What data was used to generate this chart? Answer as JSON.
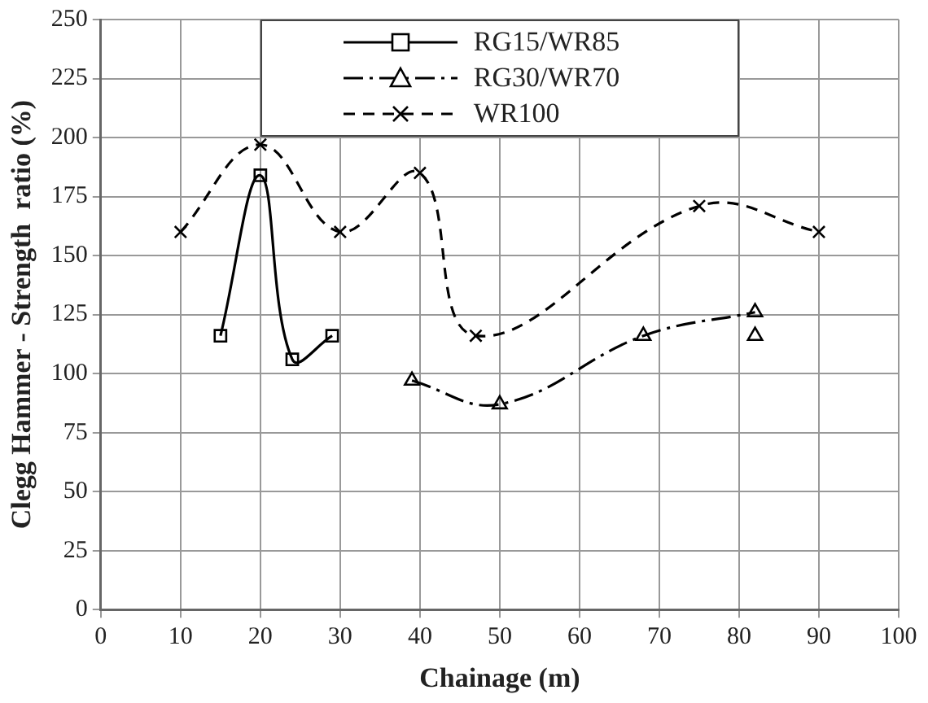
{
  "chart_data": {
    "type": "line",
    "xlabel": "Chainage (m)",
    "ylabel": "Clegg Hammer - Strength  ratio (%)",
    "xlim": [
      0,
      100
    ],
    "xticks": [
      0,
      10,
      20,
      30,
      40,
      50,
      60,
      70,
      80,
      90,
      100
    ],
    "ylim": [
      0,
      250
    ],
    "yticks": [
      0,
      25,
      50,
      75,
      100,
      125,
      150,
      175,
      200,
      225,
      250
    ],
    "grid": true,
    "legend": "top",
    "series": [
      {
        "name": "RG15/WR85",
        "color": "#000000",
        "marker": "square",
        "line_style": "solid",
        "x": [
          15,
          20,
          24,
          29
        ],
        "values": [
          116,
          184,
          106,
          116
        ]
      },
      {
        "name": "RG30/WR70",
        "color": "#000000",
        "marker": "triangle",
        "line_style": "dashdot",
        "x": [
          39,
          50,
          68,
          82
        ],
        "values": [
          97,
          87,
          116,
          126
        ]
      },
      {
        "type": "scatter",
        "color": "#000000",
        "marker": "triangle",
        "x": [
          82
        ],
        "values": [
          116
        ]
      },
      {
        "name": "WR100",
        "color": "#000000",
        "marker": "cross",
        "line_style": "dashed",
        "x": [
          10,
          20,
          30,
          40,
          47,
          75,
          90
        ],
        "values": [
          160,
          197,
          160,
          185,
          116,
          171,
          160
        ]
      }
    ]
  }
}
